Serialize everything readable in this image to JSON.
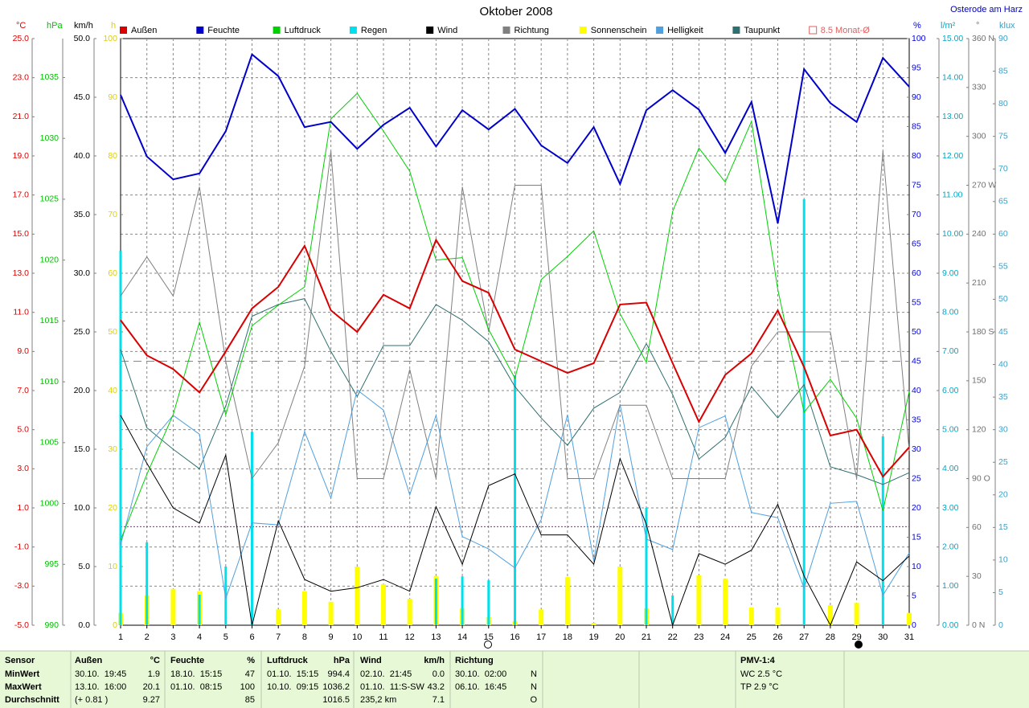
{
  "chart_data": {
    "type": "line",
    "title": "Oktober 2008",
    "subtitle": "Osterode am Harz",
    "categories": [
      1,
      2,
      3,
      4,
      5,
      6,
      7,
      8,
      9,
      10,
      11,
      12,
      13,
      14,
      15,
      16,
      17,
      18,
      19,
      20,
      21,
      22,
      23,
      24,
      25,
      26,
      27,
      28,
      29,
      30,
      31
    ],
    "grid": true,
    "axes": [
      {
        "label": "°C",
        "color": "#e00000",
        "lim": [
          -5,
          25
        ],
        "ticks": [
          {
            "value": -5,
            "label": "-5.0"
          },
          {
            "value": -3,
            "label": "-3.0"
          },
          {
            "value": -1,
            "label": "-1.0"
          },
          {
            "value": 1,
            "label": "1.0"
          },
          {
            "value": 3,
            "label": "3.0"
          },
          {
            "value": 5,
            "label": "5.0"
          },
          {
            "value": 7,
            "label": "7.0"
          },
          {
            "value": 9,
            "label": "9.0"
          },
          {
            "value": 11,
            "label": "11.0"
          },
          {
            "value": 13,
            "label": "13.0"
          },
          {
            "value": 15,
            "label": "15.0"
          },
          {
            "value": 17,
            "label": "17.0"
          },
          {
            "value": 19,
            "label": "19.0"
          },
          {
            "value": 21,
            "label": "21.0"
          },
          {
            "value": 23,
            "label": "23.0"
          },
          {
            "value": 25,
            "label": "25.0"
          }
        ]
      },
      {
        "label": "hPa",
        "color": "#00c000",
        "lim": [
          990,
          1038.2
        ],
        "ticks": [
          990,
          995,
          1000,
          1005,
          1010,
          1015,
          1020,
          1025,
          1030,
          1035
        ]
      },
      {
        "label": "km/h",
        "color": "#000000",
        "lim": [
          0,
          50
        ],
        "ticks": [
          {
            "value": 0,
            "label": "0.0"
          },
          {
            "value": 5,
            "label": "5.0"
          },
          {
            "value": 10,
            "label": "10.0"
          },
          {
            "value": 15,
            "label": "15.0"
          },
          {
            "value": 20,
            "label": "20.0"
          },
          {
            "value": 25,
            "label": "25.0"
          },
          {
            "value": 30,
            "label": "30.0"
          },
          {
            "value": 35,
            "label": "35.0"
          },
          {
            "value": 40,
            "label": "40.0"
          },
          {
            "value": 45,
            "label": "45.0"
          },
          {
            "value": 50,
            "label": "50.0"
          }
        ]
      },
      {
        "label": "h",
        "color": "#e0d000",
        "lim": [
          0,
          100
        ],
        "ticks": [
          0,
          10,
          20,
          30,
          40,
          50,
          60,
          70,
          80,
          90,
          100
        ]
      },
      {
        "label": "%",
        "color": "#0000e0",
        "lim": [
          0,
          100
        ],
        "ticks": [
          0,
          5,
          10,
          15,
          20,
          25,
          30,
          35,
          40,
          45,
          50,
          55,
          60,
          65,
          70,
          75,
          80,
          85,
          90,
          95,
          100
        ]
      },
      {
        "label": "l/m²",
        "color": "#00a8c8",
        "lim": [
          0,
          15
        ],
        "ticks": [
          {
            "value": 0,
            "label": "0.00"
          },
          {
            "value": 1,
            "label": "1.00"
          },
          {
            "value": 2,
            "label": "2.00"
          },
          {
            "value": 3,
            "label": "3.00"
          },
          {
            "value": 4,
            "label": "4.00"
          },
          {
            "value": 5,
            "label": "5.00"
          },
          {
            "value": 6,
            "label": "6.00"
          },
          {
            "value": 7,
            "label": "7.00"
          },
          {
            "value": 8,
            "label": "8.00"
          },
          {
            "value": 9,
            "label": "9.00"
          },
          {
            "value": 10,
            "label": "10.00"
          },
          {
            "value": 11,
            "label": "11.00"
          },
          {
            "value": 12,
            "label": "12.00"
          },
          {
            "value": 13,
            "label": "13.00"
          },
          {
            "value": 14,
            "label": "14.00"
          },
          {
            "value": 15,
            "label": "15.00"
          }
        ]
      },
      {
        "label": "°",
        "color": "#707070",
        "lim": [
          0,
          360
        ],
        "ticks": [
          {
            "value": 0,
            "label": "0 N"
          },
          30,
          60,
          {
            "value": 90,
            "label": "90 O"
          },
          120,
          150,
          {
            "value": 180,
            "label": "180 S"
          },
          210,
          240,
          {
            "value": 270,
            "label": "270 W"
          },
          300,
          330,
          {
            "value": 360,
            "label": "360 N"
          }
        ]
      },
      {
        "label": "klux",
        "color": "#3aa0c8",
        "lim": [
          0,
          90
        ],
        "ticks": [
          0,
          5,
          10,
          15,
          20,
          25,
          30,
          35,
          40,
          45,
          50,
          55,
          60,
          65,
          70,
          75,
          80,
          85,
          90
        ]
      }
    ],
    "series": [
      {
        "name": "Außen",
        "color": "#d80000",
        "axis": "°C",
        "values": [
          10.6,
          8.8,
          8.1,
          6.9,
          9.0,
          11.2,
          12.3,
          14.4,
          11.1,
          10.0,
          11.9,
          11.2,
          14.7,
          12.6,
          12.0,
          9.1,
          8.5,
          7.9,
          8.4,
          11.4,
          11.5,
          8.4,
          5.4,
          7.8,
          8.9,
          11.1,
          8.2,
          4.7,
          5.0,
          2.6,
          4.1
        ]
      },
      {
        "name": "Feuchte",
        "color": "#0000c8",
        "axis": "%",
        "values": [
          90.4,
          79.9,
          76,
          77,
          84.2,
          97.3,
          93.6,
          84.9,
          85.8,
          81.2,
          85.3,
          88.2,
          81.6,
          87.8,
          84.5,
          88,
          81.8,
          78.8,
          84.9,
          75.2,
          87.8,
          91.2,
          87.9,
          80.5,
          89.2,
          68.5,
          94.8,
          89,
          85.8,
          96.7,
          91.8
        ]
      },
      {
        "name": "Luftdruck",
        "color": "#00d000",
        "axis": "hPa",
        "values": [
          997.0,
          1002.4,
          1007.3,
          1014.9,
          1007.3,
          1014.6,
          1016.3,
          1017.8,
          1031.6,
          1033.7,
          1030.6,
          1027.3,
          1020.0,
          1020.2,
          1014.3,
          1010.3,
          1018.4,
          1020.3,
          1022.4,
          1015.6,
          1011.6,
          1024.0,
          1029.2,
          1026.4,
          1031.4,
          1017.6,
          1007.5,
          1010.2,
          1007.0,
          999.4,
          1009.2
        ]
      },
      {
        "name": "Regen",
        "color": "#00e0ec",
        "axis": "l/m²",
        "type": "bar",
        "values": [
          9.57,
          2.12,
          0,
          0.78,
          1.5,
          4.95,
          0,
          0,
          0,
          0,
          0,
          0,
          1.19,
          1.25,
          1.15,
          6.39,
          0,
          0,
          0,
          0,
          3.0,
          0.76,
          0,
          0,
          0,
          0,
          10.89,
          0,
          0,
          4.83,
          0
        ]
      },
      {
        "name": "Wind",
        "color": "#000000",
        "axis": "km/h",
        "values": [
          17.9,
          13.8,
          10.0,
          8.7,
          14.5,
          0,
          8.9,
          3.9,
          2.9,
          3.2,
          3.9,
          2.9,
          10.1,
          5.2,
          11.9,
          12.9,
          7.7,
          7.7,
          5.2,
          14.2,
          8.6,
          0,
          6.1,
          5.2,
          6.4,
          10.3,
          4.2,
          0,
          5.4,
          3.8,
          5.9
        ]
      },
      {
        "name": "Richtung",
        "color": "#808080",
        "axis": "°",
        "values": [
          202,
          226,
          202,
          269,
          162,
          90,
          112,
          159,
          291,
          90,
          90,
          157,
          90,
          269,
          180,
          270,
          270,
          90,
          90,
          135,
          135,
          90,
          90,
          90,
          159,
          180,
          180,
          180,
          90,
          291,
          107
        ]
      },
      {
        "name": "Sonnenschein",
        "color": "#ffff00",
        "axis": "h",
        "type": "bar",
        "values": [
          2.1,
          5.1,
          6.2,
          5.8,
          0,
          0,
          2.7,
          5.8,
          4.0,
          10.0,
          7.0,
          4.5,
          8.4,
          2.9,
          1.4,
          0.7,
          2.7,
          8.2,
          0.4,
          10.0,
          2.9,
          0,
          8.5,
          7.9,
          3.0,
          3.0,
          0,
          3.4,
          3.8,
          0,
          2.1
        ]
      },
      {
        "name": "Helligkeit",
        "color": "#50a0e0",
        "axis": "klux",
        "values": [
          12.3,
          27.4,
          32.2,
          29.3,
          4.1,
          15.7,
          15.4,
          29.7,
          19.5,
          36.1,
          33.0,
          20.0,
          32.2,
          13.6,
          11.7,
          8.8,
          16.2,
          32.3,
          9.9,
          33.9,
          13.2,
          11.6,
          30.3,
          32.1,
          17.3,
          16.5,
          5.7,
          18.7,
          19.0,
          4.6,
          11.1
        ]
      },
      {
        "name": "Taupunkt",
        "color": "#2f6f6f",
        "axis": "°C",
        "values": [
          9.1,
          5.1,
          4.0,
          3.0,
          6.2,
          10.8,
          11.4,
          11.7,
          9.0,
          6.7,
          9.3,
          9.3,
          11.4,
          10.6,
          9.5,
          7.2,
          5.6,
          4.2,
          6.1,
          6.9,
          9.4,
          6.8,
          3.5,
          4.6,
          7.2,
          5.6,
          7.3,
          3.1,
          2.7,
          2.2,
          2.8
        ]
      }
    ],
    "reference_lines": [
      {
        "name": "8.5 Monat-Ø",
        "value": 8.5,
        "axis": "°C",
        "color": "#e06060"
      },
      {
        "value": 8.4,
        "axis": "km/h",
        "color": "#c000c0"
      }
    ]
  },
  "table": {
    "header": {
      "label": "Sensor",
      "columns": [
        [
          "Außen",
          "°C"
        ],
        [
          "Feuchte",
          "%"
        ],
        [
          "Luftdruck",
          "hPa"
        ],
        [
          "Wind",
          "km/h"
        ],
        [
          "Richtung",
          null
        ]
      ],
      "extra": "PMV-1:4"
    },
    "rows": [
      {
        "label": "MinWert",
        "cells": [
          [
            "30.10.  19:45",
            1.9
          ],
          [
            "18.10.  15:15",
            47
          ],
          [
            "01.10.  15:15",
            994.4
          ],
          [
            "02.10.  21:45",
            "0.0"
          ],
          [
            "30.10.  02:00",
            "N"
          ]
        ],
        "extra": "WC 2.5 °C"
      },
      {
        "label": "MaxWert",
        "cells": [
          [
            "13.10.  16:00",
            20.1
          ],
          [
            "01.10.  08:15",
            100
          ],
          [
            "10.10.  09:15",
            1036.2
          ],
          [
            "01.10.  11:S-SW",
            43.2
          ],
          [
            "06.10.  16:45",
            "N"
          ]
        ],
        "extra": "TP 2.9 °C"
      },
      {
        "label": "Durchschnitt",
        "cells": [
          [
            "(+ 0.81 )",
            9.27
          ],
          [
            null,
            85
          ],
          [
            null,
            1016.5
          ],
          [
            "235,2 km",
            7.1
          ],
          [
            null,
            "O"
          ]
        ],
        "extra": null
      }
    ]
  }
}
